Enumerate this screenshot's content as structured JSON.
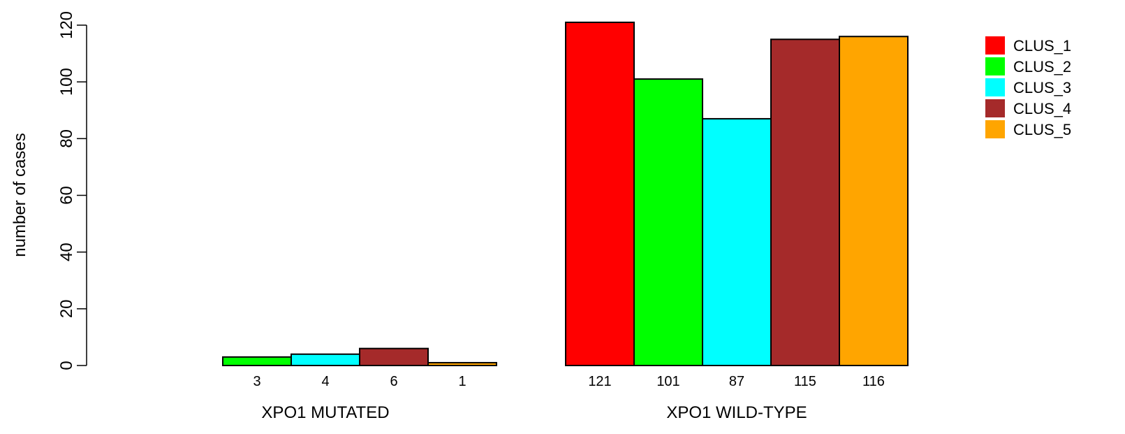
{
  "chart_data": {
    "type": "bar",
    "ylabel": "number of cases",
    "ylim": [
      0,
      120
    ],
    "yticks": [
      0,
      20,
      40,
      60,
      80,
      100,
      120
    ],
    "groups": [
      {
        "label": "XPO1 MUTATED",
        "values": [
          0,
          3,
          4,
          6,
          1
        ],
        "value_labels": [
          "",
          "3",
          "4",
          "6",
          "1"
        ]
      },
      {
        "label": "XPO1 WILD-TYPE",
        "values": [
          121,
          101,
          87,
          115,
          116
        ],
        "value_labels": [
          "121",
          "101",
          "87",
          "115",
          "116"
        ]
      }
    ],
    "series": [
      {
        "name": "CLUS_1",
        "color": "#ff0000"
      },
      {
        "name": "CLUS_2",
        "color": "#00ff00"
      },
      {
        "name": "CLUS_3",
        "color": "#00ffff"
      },
      {
        "name": "CLUS_4",
        "color": "#a52a2a"
      },
      {
        "name": "CLUS_5",
        "color": "#ffa500"
      }
    ],
    "legend": "top-right",
    "grid": false
  }
}
